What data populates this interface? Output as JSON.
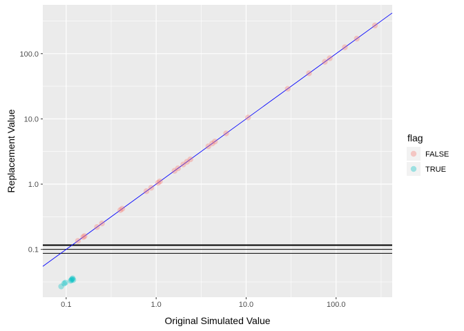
{
  "chart_data": {
    "type": "scatter",
    "xlabel": "Original Simulated Value",
    "ylabel": "Replacement Value",
    "x_scale": "log10",
    "y_scale": "log10",
    "xlim": [
      0.055,
      420
    ],
    "ylim": [
      0.0185,
      560
    ],
    "x_ticks": [
      {
        "value": 0.1,
        "label": "0.1"
      },
      {
        "value": 1,
        "label": "1.0"
      },
      {
        "value": 10,
        "label": "10.0"
      },
      {
        "value": 100,
        "label": "100.0"
      }
    ],
    "y_ticks": [
      {
        "value": 0.1,
        "label": "0.1"
      },
      {
        "value": 1,
        "label": "1.0"
      },
      {
        "value": 10,
        "label": "10.0"
      },
      {
        "value": 100,
        "label": "100.0"
      }
    ],
    "grid": true,
    "legend": {
      "title": "flag",
      "placement": "right",
      "entries": [
        {
          "label": "FALSE",
          "color": "#F8766D"
        },
        {
          "label": "TRUE",
          "color": "#00BFC4"
        }
      ]
    },
    "reference_line": {
      "type": "identity",
      "color": "#0000ff"
    },
    "hlines": [
      {
        "y": 0.116,
        "color": "#000000",
        "width": 2
      },
      {
        "y": 0.1,
        "color": "#000000",
        "width": 1
      },
      {
        "y": 0.087,
        "color": "#000000",
        "width": 1
      }
    ],
    "series": [
      {
        "name": "FALSE",
        "color": "#F8766D",
        "points": [
          [
            0.135,
            0.135
          ],
          [
            0.155,
            0.155
          ],
          [
            0.16,
            0.16
          ],
          [
            0.22,
            0.22
          ],
          [
            0.25,
            0.25
          ],
          [
            0.4,
            0.4
          ],
          [
            0.42,
            0.42
          ],
          [
            0.78,
            0.78
          ],
          [
            0.88,
            0.88
          ],
          [
            1.05,
            1.05
          ],
          [
            1.1,
            1.1
          ],
          [
            1.6,
            1.6
          ],
          [
            1.75,
            1.75
          ],
          [
            2.0,
            2.0
          ],
          [
            2.2,
            2.2
          ],
          [
            2.4,
            2.4
          ],
          [
            3.8,
            3.8
          ],
          [
            4.2,
            4.2
          ],
          [
            4.5,
            4.5
          ],
          [
            6.0,
            6.0
          ],
          [
            10.5,
            10.5
          ],
          [
            29,
            29
          ],
          [
            50,
            50
          ],
          [
            75,
            75
          ],
          [
            85,
            85
          ],
          [
            125,
            125
          ],
          [
            170,
            170
          ],
          [
            270,
            270
          ]
        ]
      },
      {
        "name": "TRUE",
        "color": "#00BFC4",
        "points": [
          [
            0.088,
            0.027
          ],
          [
            0.095,
            0.03
          ],
          [
            0.098,
            0.031
          ],
          [
            0.112,
            0.033
          ],
          [
            0.115,
            0.034
          ],
          [
            0.116,
            0.035
          ],
          [
            0.118,
            0.036
          ],
          [
            0.12,
            0.034
          ]
        ]
      }
    ]
  }
}
